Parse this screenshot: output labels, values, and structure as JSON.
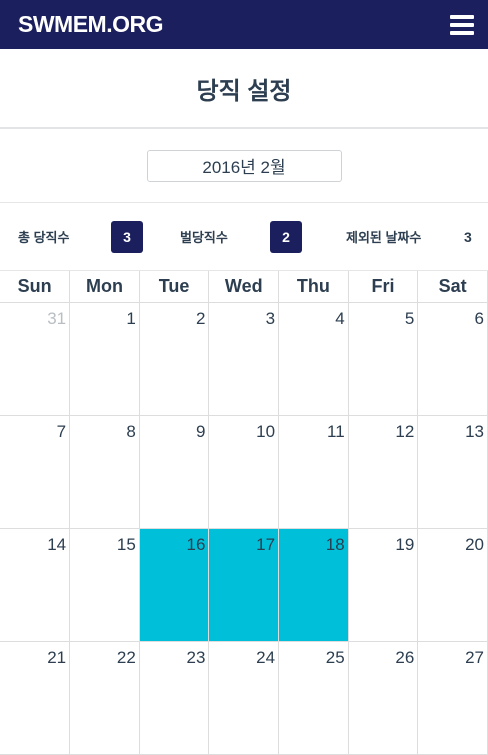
{
  "navbar": {
    "brand": "SWMEM.ORG",
    "menu_icon": "hamburger-menu-icon"
  },
  "page": {
    "title": "당직 설정"
  },
  "month": {
    "selected": "2016년 2월"
  },
  "stats": {
    "total_label": "총 당직수",
    "total_value": "3",
    "penalty_label": "벌당직수",
    "penalty_value": "2",
    "excluded_label": "제외된 날짜수",
    "excluded_value": "3"
  },
  "colors": {
    "navbar": "#1b1f5e",
    "highlight": "#00c0d9"
  },
  "calendar": {
    "weekdays": [
      "Sun",
      "Mon",
      "Tue",
      "Wed",
      "Thu",
      "Fri",
      "Sat"
    ],
    "weeks": [
      [
        "31",
        "1",
        "2",
        "3",
        "4",
        "5",
        "6"
      ],
      [
        "7",
        "8",
        "9",
        "10",
        "11",
        "12",
        "13"
      ],
      [
        "14",
        "15",
        "16",
        "17",
        "18",
        "19",
        "20"
      ],
      [
        "21",
        "22",
        "23",
        "24",
        "25",
        "26",
        "27"
      ]
    ],
    "other_month_days": [
      "31"
    ],
    "highlighted_days": [
      "16",
      "17",
      "18"
    ]
  }
}
